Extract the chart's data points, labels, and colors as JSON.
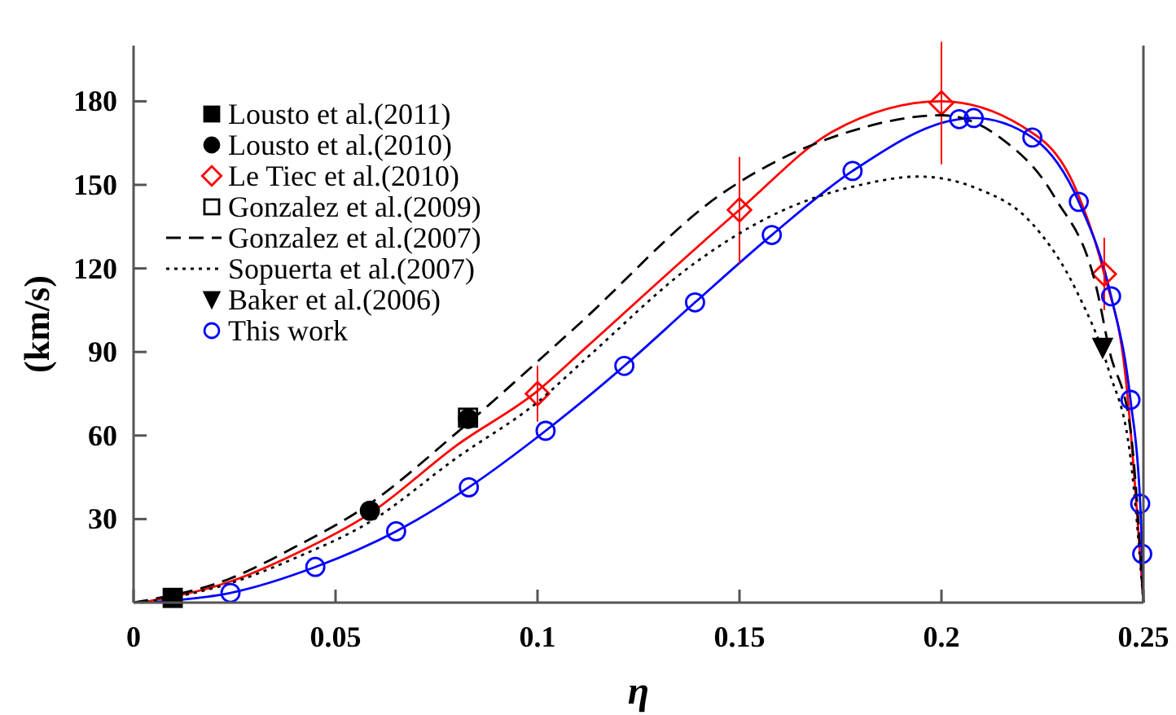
{
  "chart_data": {
    "type": "line",
    "xlabel": "η",
    "ylabel": "(km/s)",
    "xlim": [
      0,
      0.25
    ],
    "ylim": [
      0,
      200
    ],
    "xticks": [
      0,
      0.05,
      0.1,
      0.15,
      0.2,
      0.25
    ],
    "yticks": [
      30,
      60,
      90,
      120,
      150,
      180
    ],
    "legend": "top left",
    "grid": false,
    "series": [
      {
        "color": "#ff0000",
        "line_style": "solid",
        "marker": "none",
        "x": [
          0.002,
          0.024,
          0.04,
          0.0585,
          0.08,
          0.1,
          0.1123,
          0.15,
          0.1729,
          0.2,
          0.22,
          0.2334,
          0.2403,
          0.2456,
          0.25
        ],
        "values": [
          0,
          7.6,
          17.5,
          32,
          56.5,
          76,
          92,
          141,
          169,
          180,
          171,
          148,
          118,
          81,
          0
        ]
      },
      {
        "color": "#0000ff",
        "line_style": "solid",
        "marker": "none",
        "x": [
          0.005,
          0.024,
          0.045,
          0.065,
          0.083,
          0.102,
          0.1215,
          0.139,
          0.158,
          0.178,
          0.2044,
          0.208,
          0.2225,
          0.234,
          0.242,
          0.2468,
          0.2492,
          0.2497,
          0.25
        ],
        "values": [
          0.2,
          3.5,
          12.8,
          25.6,
          41.4,
          61.7,
          85,
          107.8,
          132,
          155,
          173.6,
          174,
          167,
          143.9,
          110,
          72.8,
          35.5,
          17.5,
          0
        ]
      },
      {
        "type": "scatter",
        "name": "Lousto et al.(2011)",
        "color": "#000000",
        "marker": "square",
        "x": [
          0.0097
        ],
        "values": [
          1.7
        ]
      },
      {
        "type": "scatter",
        "name": "Lousto et al.(2010)",
        "color": "#000000",
        "marker": "circle",
        "x": [
          0.0585,
          0.0828
        ],
        "values": [
          33,
          66
        ]
      },
      {
        "type": "scatter",
        "name": "Le Tiec et al.(2010)",
        "color": "#ff0000",
        "marker": "diamond",
        "x": [
          0.1,
          0.15,
          0.2,
          0.2403
        ],
        "values": [
          75,
          141,
          179.4,
          118
        ],
        "errors": [
          10,
          19,
          22,
          13
        ]
      },
      {
        "type": "scatter",
        "name": "Gonzalez et al.(2009)",
        "color": "#000000",
        "marker": "square",
        "x": [
          0.0828
        ],
        "values": [
          66.4
        ]
      },
      {
        "name": "Gonzalez et al.(2007)",
        "color": "#000000",
        "line_style": "dashed",
        "marker": "none",
        "x": [
          0,
          0.024,
          0.04,
          0.058,
          0.08,
          0.1095,
          0.1458,
          0.177,
          0.2,
          0.2145,
          0.228,
          0.2387,
          0.2415,
          0.2468,
          0.25
        ],
        "values": [
          0,
          8.7,
          20,
          35,
          61,
          99,
          147,
          169,
          175,
          167,
          145.6,
          111,
          91,
          62,
          0
        ]
      },
      {
        "name": "Sopuerta et al.(2007)",
        "color": "#000000",
        "line_style": "dotted",
        "marker": "none",
        "x": [
          0.003,
          0.024,
          0.04,
          0.0585,
          0.08,
          0.1,
          0.1123,
          0.139,
          0.1595,
          0.18,
          0.1943,
          0.209,
          0.2225,
          0.2334,
          0.2415,
          0.2468,
          0.25
        ],
        "values": [
          0.1,
          7,
          16,
          29,
          52,
          72,
          88,
          122,
          140,
          150,
          153,
          148.6,
          136,
          112,
          83,
          52,
          0
        ]
      },
      {
        "type": "scatter",
        "name": "Baker et al.(2006)",
        "color": "#000000",
        "marker": "triangle",
        "x": [
          0.2399
        ],
        "values": [
          91.5
        ]
      },
      {
        "type": "scatter",
        "name": "This work",
        "color": "#0000ff",
        "marker": "circle",
        "x": [
          0.024,
          0.045,
          0.065,
          0.083,
          0.102,
          0.1215,
          0.139,
          0.158,
          0.178,
          0.2044,
          0.208,
          0.2225,
          0.234,
          0.242,
          0.2468,
          0.2492,
          0.2497
        ],
        "values": [
          3.5,
          12.8,
          25.6,
          41.4,
          61.7,
          85,
          107.8,
          132,
          155,
          173.6,
          174,
          167,
          143.9,
          110,
          72.8,
          35.5,
          17.5
        ]
      }
    ]
  }
}
